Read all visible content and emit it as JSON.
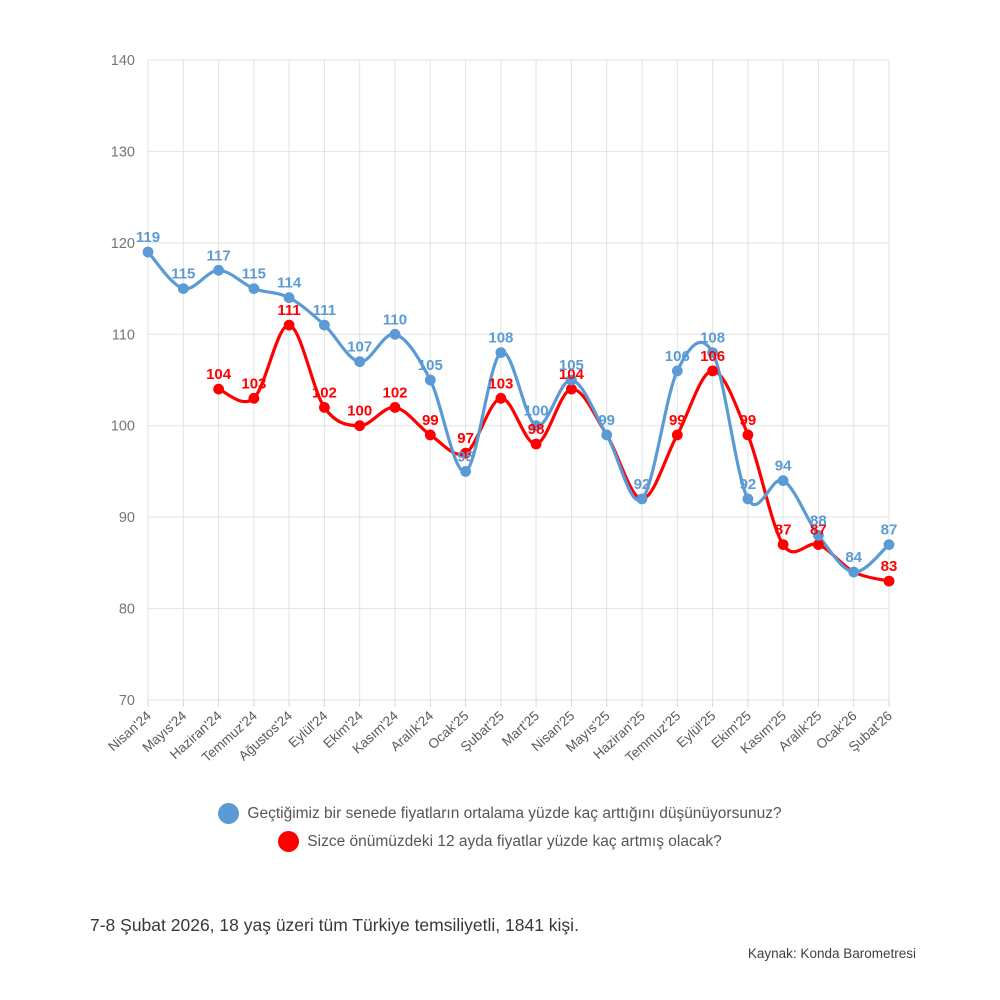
{
  "chart_data": {
    "type": "line",
    "title": "",
    "xlabel": "",
    "ylabel": "",
    "ylim": [
      70,
      140
    ],
    "ytick_step": 10,
    "grid": true,
    "smooth_lines": true,
    "legend_position": "bottom",
    "categories": [
      "Nisan'24",
      "Mayıs'24",
      "Haziran'24",
      "Temmuz'24",
      "Ağustos'24",
      "Eylül'24",
      "Ekim'24",
      "Kasım'24",
      "Aralık'24",
      "Ocak'25",
      "Şubat'25",
      "Mart'25",
      "Nisan'25",
      "Mayıs'25",
      "Haziran'25",
      "Temmuz'25",
      "Eylül'25",
      "Ekim'25",
      "Kasım'25",
      "Aralık'25",
      "Ocak'26",
      "Şubat'26"
    ],
    "series": [
      {
        "name": "Geçtiğimiz bir senede fiyatların ortalama yüzde kaç arttığını düşünüyorsunuz?",
        "color": "#5B9BD5",
        "values": [
          119,
          115,
          117,
          115,
          114,
          111,
          107,
          110,
          105,
          95,
          108,
          100,
          105,
          99,
          92,
          106,
          108,
          92,
          94,
          88,
          84,
          87
        ],
        "hidden_points": []
      },
      {
        "name": "Sizce önümüzdeki 12 ayda fiyatlar yüzde kaç artmış olacak?",
        "color": "#FF0000",
        "values": [
          null,
          null,
          104,
          103,
          111,
          102,
          100,
          102,
          99,
          97,
          103,
          98,
          104,
          99,
          92,
          99,
          106,
          99,
          87,
          87,
          84,
          83
        ],
        "hidden_points": [
          13,
          14,
          20
        ]
      }
    ],
    "axis_colors": {
      "grid": "#E2E2E2",
      "tick": "#D6D6D6",
      "y_text": "#757575",
      "x_text": "#595959"
    }
  },
  "footer": {
    "note": "7-8 Şubat 2026, 18 yaş üzeri tüm Türkiye temsiliyetli, 1841 kişi.",
    "source": "Kaynak: Konda Barometresi"
  }
}
